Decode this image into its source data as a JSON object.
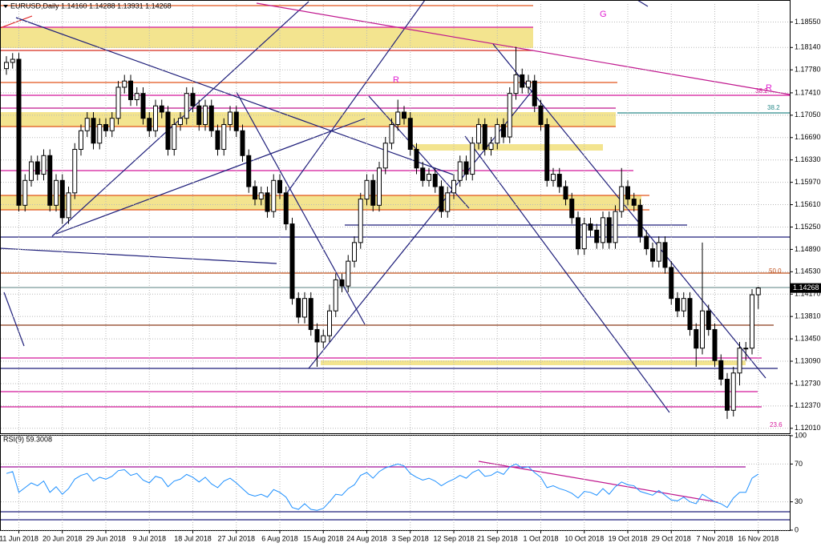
{
  "chart_data": [
    {
      "type": "candlestick",
      "title": "EURUSD,Daily  1.14160 1.14288 1.13931 1.14268",
      "categories": [
        null,
        null,
        "11 Jun 2018",
        null,
        null,
        null,
        null,
        null,
        null,
        "20 Jun 2018",
        null,
        null,
        null,
        null,
        null,
        null,
        "29 Jun 2018",
        null,
        null,
        null,
        null,
        null,
        null,
        "9 Jul 2018",
        null,
        null,
        null,
        null,
        null,
        null,
        "18 Jul 2018",
        null,
        null,
        null,
        null,
        null,
        null,
        "27 Jul 2018",
        null,
        null,
        null,
        null,
        null,
        null,
        "6 Aug 2018",
        null,
        null,
        null,
        null,
        null,
        null,
        "15 Aug 2018",
        null,
        null,
        null,
        null,
        null,
        null,
        "24 Aug 2018",
        null,
        null,
        null,
        null,
        null,
        null,
        "3 Sep 2018",
        null,
        null,
        null,
        null,
        null,
        null,
        "12 Sep 2018",
        null,
        null,
        null,
        null,
        null,
        null,
        "21 Sep 2018",
        null,
        null,
        null,
        null,
        null,
        null,
        "1 Oct 2018",
        null,
        null,
        null,
        null,
        null,
        null,
        "10 Oct 2018",
        null,
        null,
        null,
        null,
        null,
        null,
        "19 Oct 2018",
        null,
        null,
        null,
        null,
        null,
        null,
        "29 Oct 2018",
        null,
        null,
        null,
        null,
        null,
        null,
        "7 Nov 2018",
        null,
        null,
        null,
        null,
        null,
        null,
        "16 Nov 2018"
      ],
      "open": [
        1.178,
        1.179,
        1.1795,
        1.156,
        1.16,
        1.163,
        1.161,
        1.164,
        1.156,
        1.16,
        1.154,
        1.158,
        1.165,
        1.168,
        1.17,
        1.166,
        1.169,
        1.168,
        1.17,
        1.175,
        1.176,
        1.173,
        1.174,
        1.17,
        1.168,
        1.172,
        1.171,
        1.165,
        1.169,
        1.17,
        1.174,
        1.172,
        1.169,
        1.172,
        1.168,
        1.165,
        1.169,
        1.171,
        1.168,
        1.164,
        1.159,
        1.157,
        1.158,
        1.155,
        1.16,
        1.158,
        1.153,
        1.141,
        1.138,
        1.141,
        1.136,
        1.134,
        1.135,
        1.139,
        1.144,
        1.143,
        1.147,
        1.15,
        1.157,
        1.16,
        1.156,
        1.162,
        1.166,
        1.169,
        1.171,
        1.17,
        1.165,
        1.162,
        1.16,
        1.161,
        1.159,
        1.155,
        1.158,
        1.16,
        1.163,
        1.161,
        1.166,
        1.169,
        1.165,
        1.166,
        1.169,
        1.167,
        1.174,
        1.177,
        1.175,
        1.176,
        1.172,
        1.169,
        1.16,
        1.161,
        1.159,
        1.157,
        1.154,
        1.149,
        1.153,
        1.152,
        1.15,
        1.154,
        1.15,
        1.155,
        1.159,
        1.157,
        1.156,
        1.151,
        1.149,
        1.147,
        1.15,
        1.146,
        1.141,
        1.139,
        1.141,
        1.136,
        1.133,
        1.139,
        1.136,
        1.131,
        1.128,
        1.123,
        1.129,
        1.133,
        1.133,
        1.1416
      ],
      "high": [
        1.18,
        1.1805,
        1.1805,
        1.161,
        1.164,
        1.164,
        1.165,
        1.165,
        1.161,
        1.161,
        1.159,
        1.166,
        1.169,
        1.171,
        1.171,
        1.17,
        1.17,
        1.171,
        1.176,
        1.177,
        1.177,
        1.175,
        1.175,
        1.171,
        1.173,
        1.173,
        1.172,
        1.17,
        1.171,
        1.175,
        1.175,
        1.173,
        1.173,
        1.173,
        1.169,
        1.17,
        1.172,
        1.172,
        1.169,
        1.165,
        1.16,
        1.159,
        1.159,
        1.161,
        1.161,
        1.159,
        1.154,
        1.142,
        1.142,
        1.142,
        1.137,
        1.136,
        1.14,
        1.145,
        1.145,
        1.148,
        1.151,
        1.158,
        1.161,
        1.161,
        1.163,
        1.167,
        1.17,
        1.173,
        1.172,
        1.171,
        1.166,
        1.163,
        1.162,
        1.162,
        1.16,
        1.159,
        1.161,
        1.164,
        1.164,
        1.167,
        1.17,
        1.17,
        1.167,
        1.17,
        1.17,
        1.175,
        1.1815,
        1.178,
        1.177,
        1.177,
        1.173,
        1.17,
        1.162,
        1.162,
        1.16,
        1.158,
        1.155,
        1.154,
        1.154,
        1.153,
        1.155,
        1.155,
        1.156,
        1.162,
        1.16,
        1.158,
        1.157,
        1.152,
        1.15,
        1.151,
        1.151,
        1.147,
        1.142,
        1.142,
        1.142,
        1.137,
        1.15,
        1.14,
        1.137,
        1.132,
        1.129,
        1.13,
        1.134,
        1.134,
        1.1425,
        1.14288
      ],
      "low": [
        1.177,
        1.178,
        1.155,
        1.155,
        1.159,
        1.16,
        1.16,
        1.155,
        1.155,
        1.153,
        1.153,
        1.157,
        1.164,
        1.167,
        1.165,
        1.165,
        1.167,
        1.167,
        1.169,
        1.174,
        1.172,
        1.172,
        1.169,
        1.167,
        1.167,
        1.17,
        1.164,
        1.164,
        1.168,
        1.169,
        1.171,
        1.168,
        1.168,
        1.167,
        1.164,
        1.164,
        1.168,
        1.167,
        1.163,
        1.158,
        1.156,
        1.156,
        1.154,
        1.154,
        1.157,
        1.152,
        1.14,
        1.137,
        1.137,
        1.135,
        1.13,
        1.133,
        1.134,
        1.138,
        1.142,
        1.142,
        1.146,
        1.149,
        1.156,
        1.155,
        1.155,
        1.161,
        1.165,
        1.168,
        1.169,
        1.164,
        1.161,
        1.159,
        1.159,
        1.158,
        1.154,
        1.154,
        1.157,
        1.159,
        1.16,
        1.16,
        1.165,
        1.164,
        1.164,
        1.165,
        1.166,
        1.166,
        1.173,
        1.174,
        1.174,
        1.171,
        1.168,
        1.159,
        1.159,
        1.158,
        1.156,
        1.153,
        1.148,
        1.148,
        1.151,
        1.149,
        1.149,
        1.149,
        1.149,
        1.154,
        1.156,
        1.155,
        1.15,
        1.148,
        1.146,
        1.146,
        1.145,
        1.14,
        1.138,
        1.138,
        1.135,
        1.13,
        1.132,
        1.135,
        1.13,
        1.127,
        1.1216,
        1.122,
        1.127,
        1.131,
        1.132,
        1.13931
      ],
      "close": [
        1.179,
        1.1795,
        1.156,
        1.16,
        1.163,
        1.161,
        1.164,
        1.156,
        1.16,
        1.154,
        1.158,
        1.165,
        1.168,
        1.17,
        1.166,
        1.169,
        1.168,
        1.17,
        1.175,
        1.176,
        1.173,
        1.174,
        1.17,
        1.168,
        1.172,
        1.171,
        1.165,
        1.169,
        1.17,
        1.174,
        1.172,
        1.169,
        1.172,
        1.168,
        1.165,
        1.169,
        1.171,
        1.168,
        1.164,
        1.159,
        1.157,
        1.158,
        1.155,
        1.16,
        1.158,
        1.153,
        1.141,
        1.138,
        1.141,
        1.136,
        1.134,
        1.135,
        1.139,
        1.144,
        1.143,
        1.147,
        1.15,
        1.157,
        1.16,
        1.156,
        1.162,
        1.166,
        1.169,
        1.171,
        1.17,
        1.165,
        1.162,
        1.16,
        1.161,
        1.159,
        1.155,
        1.158,
        1.16,
        1.163,
        1.161,
        1.166,
        1.169,
        1.165,
        1.166,
        1.169,
        1.167,
        1.174,
        1.177,
        1.175,
        1.176,
        1.172,
        1.169,
        1.16,
        1.161,
        1.159,
        1.157,
        1.154,
        1.149,
        1.153,
        1.152,
        1.15,
        1.154,
        1.15,
        1.155,
        1.159,
        1.157,
        1.156,
        1.151,
        1.149,
        1.147,
        1.15,
        1.146,
        1.141,
        1.139,
        1.141,
        1.136,
        1.133,
        1.139,
        1.136,
        1.131,
        1.128,
        1.123,
        1.129,
        1.133,
        1.133,
        1.1416,
        1.14268
      ],
      "up_color": "#ffffff",
      "down_color": "#000000",
      "ylim": [
        1.1193,
        1.1884
      ],
      "yticks": [
        {
          "value": 1.1855,
          "label": "1.18550"
        },
        {
          "value": 1.1814,
          "label": "1.18140"
        },
        {
          "value": 1.1778,
          "label": "1.17780"
        },
        {
          "value": 1.1741,
          "label": "1.17410"
        },
        {
          "value": 1.1705,
          "label": "1.17050"
        },
        {
          "value": 1.1669,
          "label": "1.16690"
        },
        {
          "value": 1.1633,
          "label": "1.16330"
        },
        {
          "value": 1.1597,
          "label": "1.15970"
        },
        {
          "value": 1.1561,
          "label": "1.15610"
        },
        {
          "value": 1.1525,
          "label": "1.15250"
        },
        {
          "value": 1.1489,
          "label": "1.14890"
        },
        {
          "value": 1.1453,
          "label": "1.14530"
        },
        {
          "value": 1.1417,
          "label": "1.14170"
        },
        {
          "value": 1.1381,
          "label": "1.13810"
        },
        {
          "value": 1.1345,
          "label": "1.13450"
        },
        {
          "value": 1.1309,
          "label": "1.13090"
        },
        {
          "value": 1.1273,
          "label": "1.12730"
        },
        {
          "value": 1.1237,
          "label": "1.12370"
        },
        {
          "value": 1.1201,
          "label": "1.12010"
        }
      ],
      "grid": true,
      "annotations": [
        "G",
        "R",
        "R",
        "38.2",
        "38.2",
        "50.0",
        "23.6"
      ]
    },
    {
      "type": "line",
      "title": "RSI(9) 59.3008",
      "values": [
        60,
        62,
        40,
        45,
        50,
        47,
        52,
        40,
        46,
        38,
        44,
        54,
        58,
        60,
        52,
        56,
        54,
        57,
        63,
        64,
        58,
        60,
        53,
        50,
        57,
        55,
        46,
        52,
        54,
        59,
        56,
        51,
        56,
        49,
        45,
        52,
        55,
        50,
        44,
        38,
        36,
        38,
        35,
        43,
        40,
        35,
        24,
        22,
        28,
        22,
        21,
        23,
        30,
        38,
        37,
        44,
        48,
        58,
        61,
        55,
        62,
        66,
        68,
        70,
        68,
        60,
        56,
        53,
        55,
        52,
        47,
        51,
        54,
        58,
        55,
        61,
        64,
        57,
        58,
        62,
        59,
        67,
        70,
        66,
        67,
        61,
        56,
        45,
        47,
        44,
        42,
        39,
        34,
        41,
        40,
        37,
        44,
        38,
        46,
        51,
        48,
        47,
        41,
        39,
        37,
        42,
        37,
        32,
        31,
        35,
        30,
        28,
        38,
        34,
        30,
        28,
        24,
        34,
        40,
        40,
        55,
        59.3008
      ],
      "color": "#1e90ff",
      "ylim": [
        0,
        100
      ],
      "yticks": [
        0,
        30,
        70,
        100
      ],
      "grid": true
    }
  ]
}
